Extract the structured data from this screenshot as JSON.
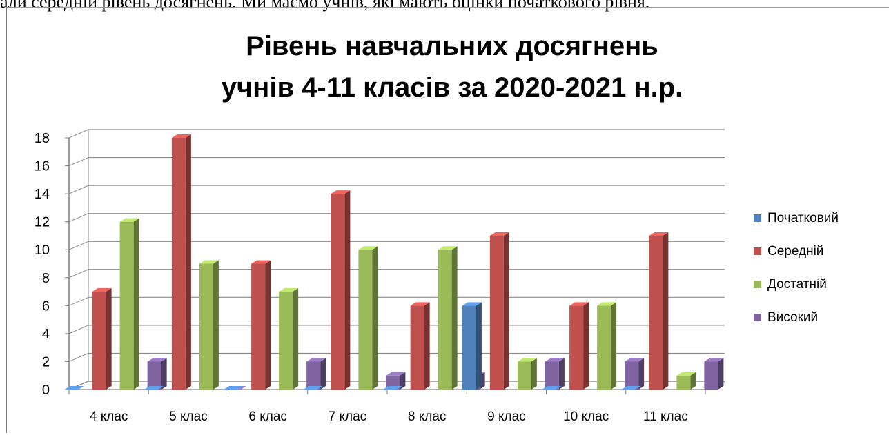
{
  "top_text": "али середній рівень досягнень. Ми маємо учнів, які мають оцінки початкового рівня.",
  "chart_data": {
    "type": "bar",
    "title": "Рівень навчальних досягнень учнів 4-11 класів за 2020-2021 н.р.",
    "title_lines": [
      "Рівень навчальних досягнень",
      "учнів 4-11 класів за 2020-2021 н.р."
    ],
    "categories": [
      "4 клас",
      "5 клас",
      "6 клас",
      "7 клас",
      "8 клас",
      "9 клас",
      "10 клас",
      "11 клас"
    ],
    "series": [
      {
        "name": "Початковий",
        "color": "#4f81bd",
        "values": [
          0,
          0,
          0,
          0,
          0,
          6,
          0,
          0
        ]
      },
      {
        "name": "Середній",
        "color": "#c0504d",
        "values": [
          7,
          18,
          9,
          14,
          6,
          11,
          6,
          11
        ]
      },
      {
        "name": "Достатній",
        "color": "#9bbb59",
        "values": [
          12,
          9,
          7,
          10,
          10,
          2,
          6,
          1
        ]
      },
      {
        "name": "Високий",
        "color": "#8064a2",
        "values": [
          2,
          0,
          2,
          1,
          1,
          2,
          2,
          2
        ]
      }
    ],
    "ylim": [
      0,
      18
    ],
    "yticks": [
      0,
      2,
      4,
      6,
      8,
      10,
      12,
      14,
      16,
      18
    ],
    "grid": true,
    "legend_position": "right",
    "style": "3d-column"
  }
}
